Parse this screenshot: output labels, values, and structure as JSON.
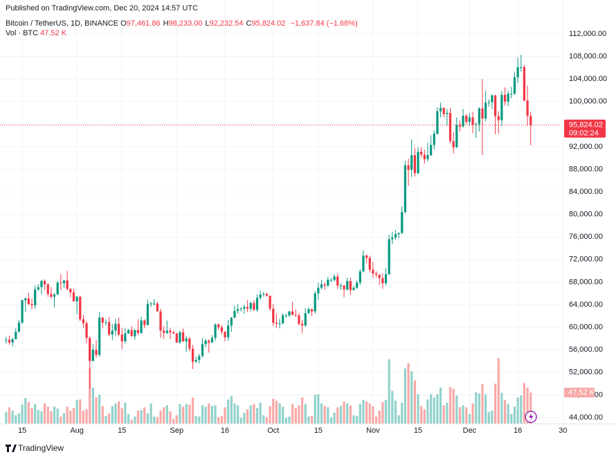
{
  "header": {
    "published": "Published on TradingView.com, Dec 20, 2024 14:57 UTC",
    "symbol": "Bitcoin / TetherUS, 1D, BINANCE",
    "ohlc": [
      {
        "key": "O",
        "value": "97,461.86"
      },
      {
        "key": "H",
        "value": "98,233.00"
      },
      {
        "key": "L",
        "value": "92,232.54"
      },
      {
        "key": "C",
        "value": "95,824.02"
      }
    ],
    "change": "−1,637.84 (−1.68%)",
    "vol_name": "Vol · BTC",
    "vol_value": "47.52 K",
    "countdown": "09:02:24",
    "brand": "TradingView"
  },
  "chart_data": {
    "type": "candlestick",
    "up_color": "#089981",
    "down_color": "#f23645",
    "up_volume_color": "#92d2cc",
    "down_volume_color": "#f7a9a7",
    "grid": true,
    "xlim": [
      -1.9,
      172.3
    ],
    "ylim": [
      42890,
      118010
    ],
    "xticks": [
      {
        "value": 5,
        "label": "15"
      },
      {
        "value": 22,
        "label": "Aug"
      },
      {
        "value": 36,
        "label": "15"
      },
      {
        "value": 53,
        "label": "Sep"
      },
      {
        "value": 68,
        "label": "16"
      },
      {
        "value": 83,
        "label": "Oct"
      },
      {
        "value": 97,
        "label": "15"
      },
      {
        "value": 114,
        "label": "Nov"
      },
      {
        "value": 128,
        "label": "15"
      },
      {
        "value": 144,
        "label": "Dec"
      },
      {
        "value": 159,
        "label": "16"
      },
      {
        "value": 173,
        "label": "30"
      }
    ],
    "yticks": [
      {
        "value": 44000,
        "label": "44,000.00"
      },
      {
        "value": 48000,
        "label": "48,000.00"
      },
      {
        "value": 52000,
        "label": "52,000.00"
      },
      {
        "value": 56000,
        "label": "56,000.00"
      },
      {
        "value": 60000,
        "label": "60,000.00"
      },
      {
        "value": 64000,
        "label": "64,000.00"
      },
      {
        "value": 68000,
        "label": "68,000.00"
      },
      {
        "value": 72000,
        "label": "72,000.00"
      },
      {
        "value": 76000,
        "label": "76,000.00"
      },
      {
        "value": 80000,
        "label": "80,000.00"
      },
      {
        "value": 84000,
        "label": "84,000.00"
      },
      {
        "value": 88000,
        "label": "88,000.00"
      },
      {
        "value": 92000,
        "label": "92,000.00"
      },
      {
        "value": 96000,
        "label": "96,000.00"
      },
      {
        "value": 100000,
        "label": "100,000.00"
      },
      {
        "value": 104000,
        "label": "104,000.00"
      },
      {
        "value": 108000,
        "label": "108,000.00"
      },
      {
        "value": 112000,
        "label": "112,000.00"
      }
    ],
    "ohlc": [
      [
        57700,
        58300,
        57100,
        57800
      ],
      [
        57800,
        58500,
        56900,
        57300
      ],
      [
        57300,
        58100,
        56600,
        57900
      ],
      [
        57900,
        59800,
        57800,
        59200
      ],
      [
        59200,
        61300,
        59100,
        60800
      ],
      [
        60800,
        64900,
        60600,
        64800
      ],
      [
        64800,
        65300,
        62700,
        65100
      ],
      [
        65100,
        66100,
        63900,
        64100
      ],
      [
        64100,
        65100,
        63200,
        63900
      ],
      [
        63900,
        67400,
        63300,
        66700
      ],
      [
        66700,
        67600,
        66400,
        67100
      ],
      [
        67100,
        68400,
        65800,
        68200
      ],
      [
        68200,
        68500,
        66600,
        67600
      ],
      [
        67600,
        67800,
        65400,
        65900
      ],
      [
        65900,
        67100,
        65100,
        65400
      ],
      [
        65400,
        66100,
        63500,
        65800
      ],
      [
        65800,
        68200,
        65700,
        67900
      ],
      [
        67900,
        69400,
        66600,
        67800
      ],
      [
        67800,
        68300,
        67000,
        68300
      ],
      [
        68300,
        70000,
        66500,
        66800
      ],
      [
        66800,
        66900,
        65300,
        66200
      ],
      [
        66200,
        66800,
        64500,
        64600
      ],
      [
        64600,
        65600,
        62300,
        65400
      ],
      [
        65400,
        65600,
        61100,
        61400
      ],
      [
        61400,
        62200,
        59900,
        60700
      ],
      [
        60700,
        61100,
        57100,
        58100
      ],
      [
        58100,
        58300,
        49000,
        54000
      ],
      [
        54000,
        57000,
        54000,
        56000
      ],
      [
        56000,
        57700,
        54600,
        55100
      ],
      [
        55100,
        62700,
        54800,
        61700
      ],
      [
        61700,
        61800,
        59800,
        60800
      ],
      [
        60800,
        61400,
        60300,
        60900
      ],
      [
        60900,
        61800,
        58400,
        58700
      ],
      [
        58700,
        60600,
        57700,
        59400
      ],
      [
        59400,
        61500,
        58400,
        60600
      ],
      [
        60600,
        61700,
        58400,
        58700
      ],
      [
        58700,
        59800,
        56100,
        57500
      ],
      [
        57500,
        59800,
        57100,
        58900
      ],
      [
        58900,
        59700,
        58800,
        59500
      ],
      [
        59500,
        60200,
        58400,
        58400
      ],
      [
        58400,
        59600,
        57800,
        59500
      ],
      [
        59500,
        61400,
        58600,
        59000
      ],
      [
        59000,
        61800,
        58800,
        61200
      ],
      [
        61200,
        61400,
        59800,
        60400
      ],
      [
        60400,
        64900,
        60300,
        64100
      ],
      [
        64100,
        64500,
        63600,
        64200
      ],
      [
        64200,
        65000,
        63800,
        64200
      ],
      [
        64200,
        64500,
        62800,
        62800
      ],
      [
        62800,
        63300,
        58100,
        59400
      ],
      [
        59400,
        60200,
        57900,
        59000
      ],
      [
        59000,
        61200,
        58800,
        59400
      ],
      [
        59400,
        59900,
        57900,
        59100
      ],
      [
        59100,
        59400,
        58800,
        58900
      ],
      [
        58900,
        59000,
        57200,
        57300
      ],
      [
        57300,
        59400,
        57100,
        59100
      ],
      [
        59100,
        59800,
        57400,
        57500
      ],
      [
        57500,
        58500,
        55600,
        58000
      ],
      [
        58000,
        58300,
        55700,
        56200
      ],
      [
        56200,
        56900,
        52600,
        53900
      ],
      [
        53900,
        54800,
        53700,
        54200
      ],
      [
        54200,
        55300,
        53600,
        54900
      ],
      [
        54900,
        58100,
        54600,
        57000
      ],
      [
        57000,
        58000,
        56400,
        57600
      ],
      [
        57600,
        57900,
        55500,
        57300
      ],
      [
        57300,
        58600,
        57300,
        58100
      ],
      [
        58100,
        60700,
        57600,
        60500
      ],
      [
        60500,
        60700,
        59500,
        60000
      ],
      [
        60000,
        60400,
        58700,
        59200
      ],
      [
        59200,
        59300,
        57500,
        58200
      ],
      [
        58200,
        61300,
        57600,
        60300
      ],
      [
        60300,
        61800,
        59200,
        61700
      ],
      [
        61700,
        63800,
        61600,
        62900
      ],
      [
        62900,
        64100,
        62400,
        63200
      ],
      [
        63200,
        63500,
        62800,
        63300
      ],
      [
        63300,
        64000,
        62400,
        63600
      ],
      [
        63600,
        64800,
        62700,
        63300
      ],
      [
        63300,
        64500,
        62800,
        64300
      ],
      [
        64300,
        64800,
        62900,
        63100
      ],
      [
        63100,
        65800,
        62700,
        65200
      ],
      [
        65200,
        66500,
        64800,
        65800
      ],
      [
        65800,
        66300,
        65400,
        65900
      ],
      [
        65900,
        66100,
        65400,
        65600
      ],
      [
        65600,
        65600,
        62900,
        63300
      ],
      [
        63300,
        64100,
        60200,
        60800
      ],
      [
        60800,
        62400,
        59900,
        60600
      ],
      [
        60600,
        61500,
        59800,
        60700
      ],
      [
        60700,
        62500,
        60500,
        62100
      ],
      [
        62100,
        62400,
        61700,
        62100
      ],
      [
        62100,
        62900,
        61800,
        62800
      ],
      [
        62800,
        64500,
        62100,
        62200
      ],
      [
        62200,
        63200,
        61800,
        62100
      ],
      [
        62100,
        62500,
        60300,
        60600
      ],
      [
        60600,
        61300,
        58900,
        60300
      ],
      [
        60300,
        63400,
        60100,
        62500
      ],
      [
        62500,
        63500,
        62400,
        63200
      ],
      [
        63200,
        63300,
        62000,
        62800
      ],
      [
        62800,
        66500,
        62400,
        66000
      ],
      [
        66000,
        67900,
        64800,
        67000
      ],
      [
        67000,
        68400,
        66700,
        67600
      ],
      [
        67600,
        67900,
        66700,
        67400
      ],
      [
        67400,
        68900,
        67100,
        68400
      ],
      [
        68400,
        68700,
        68000,
        68400
      ],
      [
        68400,
        69400,
        68100,
        69000
      ],
      [
        69000,
        69500,
        66800,
        67400
      ],
      [
        67400,
        67800,
        66600,
        67400
      ],
      [
        67400,
        67500,
        65300,
        66700
      ],
      [
        66700,
        68800,
        66500,
        68200
      ],
      [
        68200,
        68800,
        65700,
        66600
      ],
      [
        66600,
        67400,
        66500,
        67000
      ],
      [
        67000,
        68300,
        66800,
        67900
      ],
      [
        67900,
        70300,
        67500,
        69900
      ],
      [
        69900,
        73600,
        69700,
        72700
      ],
      [
        72700,
        72900,
        71400,
        72300
      ],
      [
        72300,
        72700,
        69700,
        70200
      ],
      [
        70200,
        71600,
        68800,
        69500
      ],
      [
        69500,
        69900,
        68800,
        69300
      ],
      [
        69300,
        69400,
        67500,
        68700
      ],
      [
        68700,
        69500,
        66800,
        67800
      ],
      [
        67800,
        70500,
        67400,
        69400
      ],
      [
        69400,
        76400,
        69300,
        75600
      ],
      [
        75600,
        76900,
        74700,
        75900
      ],
      [
        75900,
        77200,
        75500,
        76500
      ],
      [
        76500,
        76800,
        75800,
        76700
      ],
      [
        76700,
        81500,
        76500,
        80400
      ],
      [
        80400,
        89500,
        80200,
        88700
      ],
      [
        88700,
        89900,
        85100,
        87900
      ],
      [
        87900,
        93300,
        86600,
        90500
      ],
      [
        90500,
        91800,
        86700,
        87300
      ],
      [
        87300,
        91900,
        87100,
        91100
      ],
      [
        91100,
        91900,
        90100,
        90600
      ],
      [
        90600,
        91500,
        89000,
        89800
      ],
      [
        89800,
        92700,
        89400,
        90500
      ],
      [
        90500,
        94000,
        90400,
        92300
      ],
      [
        92300,
        94900,
        91500,
        94300
      ],
      [
        94300,
        99000,
        94100,
        98300
      ],
      [
        98300,
        99800,
        97200,
        98900
      ],
      [
        98900,
        98900,
        97200,
        97800
      ],
      [
        97800,
        98700,
        95700,
        98000
      ],
      [
        98000,
        98900,
        92600,
        93000
      ],
      [
        93000,
        94600,
        90800,
        91900
      ],
      [
        91900,
        97200,
        91800,
        95900
      ],
      [
        95900,
        96600,
        94700,
        95600
      ],
      [
        95600,
        98700,
        95400,
        97500
      ],
      [
        97500,
        97800,
        96000,
        96400
      ],
      [
        96400,
        98000,
        95700,
        97200
      ],
      [
        97200,
        98200,
        94400,
        95900
      ],
      [
        95900,
        96300,
        93600,
        96000
      ],
      [
        96000,
        99000,
        94700,
        98800
      ],
      [
        98800,
        104000,
        90500,
        97000
      ],
      [
        97000,
        101900,
        96500,
        99800
      ],
      [
        99800,
        100400,
        99100,
        99900
      ],
      [
        99900,
        101300,
        98700,
        101100
      ],
      [
        101100,
        101200,
        94200,
        97400
      ],
      [
        97400,
        98300,
        94300,
        96700
      ],
      [
        96700,
        101900,
        95700,
        101200
      ],
      [
        101200,
        102500,
        99300,
        100000
      ],
      [
        100000,
        101900,
        99200,
        101400
      ],
      [
        101400,
        102600,
        100600,
        101400
      ],
      [
        101400,
        105200,
        101200,
        104300
      ],
      [
        104300,
        107800,
        103300,
        106100
      ],
      [
        106100,
        108300,
        105300,
        106100
      ],
      [
        106100,
        106500,
        100000,
        100200
      ],
      [
        100200,
        102800,
        95700,
        97500
      ],
      [
        97461.86,
        98233,
        92232.54,
        95824.02
      ]
    ],
    "volume": [
      18,
      25,
      20,
      13,
      16,
      29,
      39,
      33,
      24,
      30,
      21,
      19,
      31,
      26,
      19,
      26,
      23,
      11,
      16,
      26,
      20,
      24,
      36,
      37,
      20,
      22,
      85,
      55,
      40,
      44,
      27,
      12,
      16,
      27,
      31,
      34,
      24,
      32,
      15,
      6,
      11,
      20,
      21,
      25,
      16,
      31,
      11,
      10,
      20,
      25,
      28,
      19,
      7,
      13,
      30,
      26,
      30,
      29,
      40,
      12,
      11,
      28,
      26,
      31,
      27,
      28,
      10,
      12,
      25,
      37,
      42,
      31,
      28,
      9,
      17,
      22,
      28,
      30,
      24,
      32,
      13,
      10,
      27,
      38,
      35,
      31,
      26,
      9,
      11,
      30,
      24,
      28,
      40,
      30,
      11,
      12,
      44,
      45,
      31,
      27,
      25,
      10,
      17,
      25,
      27,
      34,
      31,
      28,
      13,
      12,
      30,
      36,
      34,
      31,
      27,
      11,
      20,
      33,
      36,
      98,
      50,
      35,
      13,
      32,
      84,
      92,
      80,
      66,
      45,
      27,
      22,
      37,
      45,
      40,
      45,
      55,
      28,
      32,
      56,
      53,
      43,
      25,
      28,
      25,
      15,
      31,
      48,
      46,
      60,
      45,
      18,
      20,
      61,
      100,
      47,
      36,
      30,
      15,
      26,
      40,
      43,
      62,
      55,
      47.52
    ]
  }
}
